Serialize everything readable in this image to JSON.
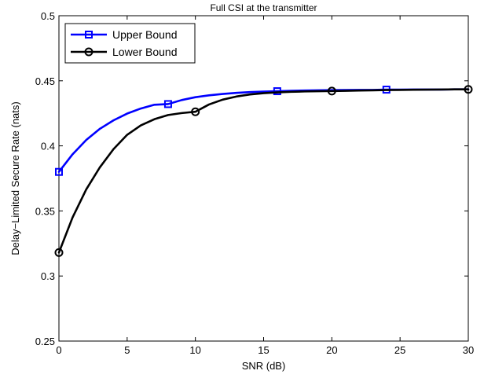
{
  "chart_data": {
    "type": "line",
    "title": "Full CSI at the transmitter",
    "xlabel": "SNR (dB)",
    "ylabel": "Delay−Limited Secure Rate (nats)",
    "xlim": [
      0,
      30
    ],
    "ylim": [
      0.25,
      0.5
    ],
    "xticks": [
      0,
      5,
      10,
      15,
      20,
      25,
      30
    ],
    "yticks": [
      0.25,
      0.3,
      0.35,
      0.4,
      0.45,
      0.5
    ],
    "xtick_labels": [
      "0",
      "5",
      "10",
      "15",
      "20",
      "25",
      "30"
    ],
    "ytick_labels": [
      "0.25",
      "0.3",
      "0.35",
      "0.4",
      "0.45",
      "0.5"
    ],
    "grid": false,
    "legend_position": "top-left",
    "series": [
      {
        "name": "Upper Bound",
        "color": "#0000ff",
        "marker": "square",
        "x": [
          0,
          1,
          2,
          3,
          4,
          5,
          6,
          7,
          8,
          9,
          10,
          11,
          12,
          13,
          14,
          15,
          16,
          17,
          18,
          19,
          20,
          21,
          22,
          23,
          24,
          25,
          26,
          27,
          28,
          29,
          30
        ],
        "values": [
          0.38,
          0.3935,
          0.4045,
          0.4131,
          0.4196,
          0.4248,
          0.4287,
          0.4316,
          0.4321,
          0.4352,
          0.4374,
          0.4388,
          0.4399,
          0.4407,
          0.4413,
          0.4417,
          0.442,
          0.4423,
          0.4425,
          0.4427,
          0.4428,
          0.4429,
          0.443,
          0.443,
          0.4432,
          0.4432,
          0.4433,
          0.4433,
          0.4433,
          0.4434,
          0.4434
        ],
        "marker_x": [
          0,
          8,
          16,
          24
        ],
        "marker_values": [
          0.38,
          0.4321,
          0.442,
          0.4432
        ]
      },
      {
        "name": "Lower Bound",
        "color": "#000000",
        "marker": "circle",
        "x": [
          0,
          1,
          2,
          3,
          4,
          5,
          6,
          7,
          8,
          9,
          10,
          11,
          12,
          13,
          14,
          15,
          16,
          17,
          18,
          19,
          20,
          21,
          22,
          23,
          24,
          25,
          26,
          27,
          28,
          29,
          30
        ],
        "values": [
          0.318,
          0.345,
          0.3665,
          0.3835,
          0.3975,
          0.4085,
          0.4157,
          0.4205,
          0.4237,
          0.4252,
          0.4262,
          0.4318,
          0.4355,
          0.4379,
          0.4395,
          0.4405,
          0.4411,
          0.4415,
          0.4418,
          0.442,
          0.4421,
          0.4423,
          0.4425,
          0.4427,
          0.4429,
          0.443,
          0.4431,
          0.4432,
          0.4433,
          0.4434,
          0.4434
        ],
        "marker_x": [
          0,
          10,
          20,
          30
        ],
        "marker_values": [
          0.318,
          0.4262,
          0.4421,
          0.4434
        ]
      }
    ]
  }
}
